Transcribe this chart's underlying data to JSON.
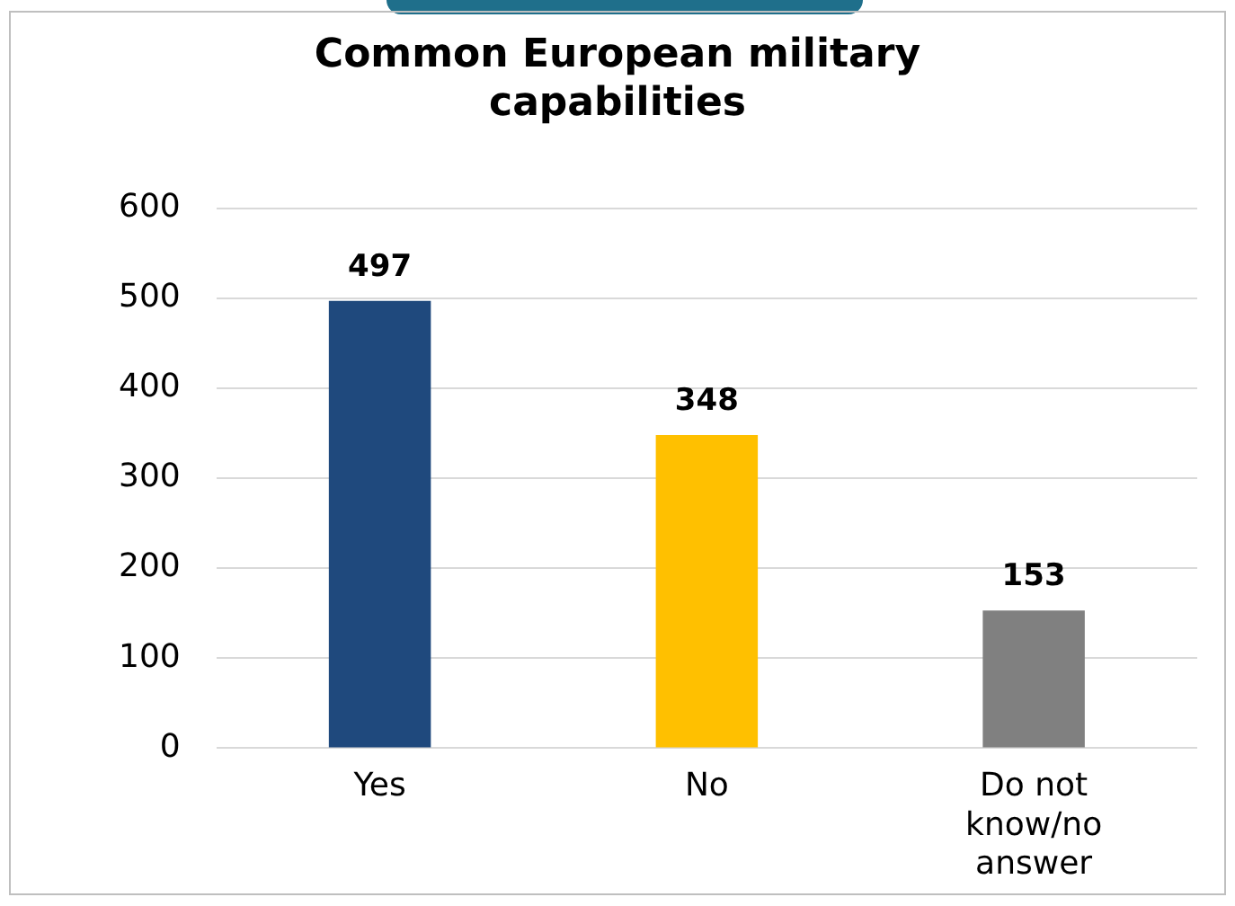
{
  "chart_data": {
    "type": "bar",
    "title": "Common European military capabilities",
    "categories": [
      "Yes",
      "No",
      "Do not know/no answer"
    ],
    "values": [
      497,
      348,
      153
    ],
    "colors": [
      "#1f497d",
      "#ffc000",
      "#808080"
    ],
    "ylim": [
      0,
      600
    ],
    "yticks": [
      0,
      100,
      200,
      300,
      400,
      500,
      600
    ],
    "grid": "y",
    "data_labels": true,
    "legend": false
  }
}
